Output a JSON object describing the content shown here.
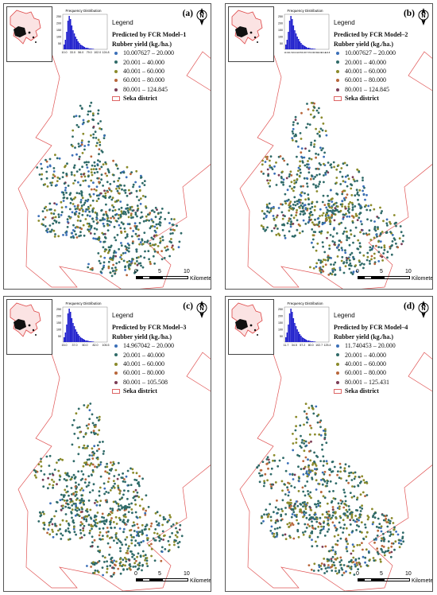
{
  "colors": {
    "class1": "#3b6fb8",
    "class2": "#2f6a68",
    "class3": "#8a8a2a",
    "class4": "#b8663a",
    "class5": "#7a3b55",
    "boundary": "#e05555",
    "histogram": "#1f1fcc"
  },
  "panels": [
    {
      "label": "(a)",
      "legend_title": "Legend",
      "model": "Predicted by FCR Model–1",
      "yield_label": "Rubber yield (kg./ha.)",
      "classes": [
        "10.007627 – 20.000",
        "20.001 – 40.000",
        "40.001 – 60.000",
        "60.001 – 80.000",
        "80.001 – 124.845"
      ],
      "boundary_label": "Seka district",
      "hist_title": "Frequency Distribution",
      "hist_y": [
        "250",
        "200",
        "150",
        "100",
        "50"
      ],
      "hist_x": [
        "10.0",
        "33.0",
        "56.0",
        "79.0",
        "102.0",
        "124.8"
      ],
      "north": "N",
      "scale": [
        "0",
        "5",
        "10"
      ],
      "scale_unit": "Kilometers"
    },
    {
      "label": "(b)",
      "legend_title": "Legend",
      "model": "Predicted by FCR Model–2",
      "yield_label": "Rubber yield (kg./ha.)",
      "classes": [
        "10.007627 – 20.000",
        "20.001 – 40.000",
        "40.001 – 60.000",
        "60.001 – 80.000",
        "80.001 – 124.845"
      ],
      "boundary_label": "Seka district",
      "hist_title": "Frequency Distribution",
      "hist_y": [
        "250",
        "200",
        "150",
        "100",
        "50"
      ],
      "hist_x": [
        "10.0",
        "21.5",
        "33.0",
        "44.5",
        "56.0",
        "67.5",
        "79.0",
        "90.5",
        "102.0",
        "113.4",
        "124.8"
      ],
      "north": "N",
      "scale": [
        "0",
        "5",
        "10"
      ],
      "scale_unit": "Kilometers"
    },
    {
      "label": "(c)",
      "legend_title": "Legend",
      "model": "Predicted by FCR Model–3",
      "yield_label": "Rubber yield (kg./ha.)",
      "classes": [
        "14.967042 – 20.000",
        "20.001 – 40.000",
        "40.001 – 60.000",
        "60.001 – 80.000",
        "80.001 – 105.508"
      ],
      "boundary_label": "Seka district",
      "hist_title": "Frequency Distribution",
      "hist_y": [
        "250",
        "200",
        "150",
        "100",
        "50"
      ],
      "hist_x": [
        "15.0",
        "37.0",
        "60.0",
        "82.0",
        "105.5"
      ],
      "north": "N",
      "scale": [
        "0",
        "5",
        "10"
      ],
      "scale_unit": "Kilometers"
    },
    {
      "label": "(d)",
      "legend_title": "Legend",
      "model": "Predicted by FCR Model–4",
      "yield_label": "Rubber yield (kg./ha.)",
      "classes": [
        "11.740453 – 20.000",
        "20.001 – 40.000",
        "40.001 – 60.000",
        "60.001 – 80.000",
        "80.001 – 125.431"
      ],
      "boundary_label": "Seka district",
      "hist_title": "Frequency Distribution",
      "hist_y": [
        "250",
        "200",
        "150",
        "100",
        "50"
      ],
      "hist_x": [
        "11.7",
        "34.5",
        "57.2",
        "80.0",
        "102.7",
        "125.4"
      ],
      "north": "N",
      "scale": [
        "0",
        "5",
        "10"
      ],
      "scale_unit": "Kilometers"
    }
  ]
}
